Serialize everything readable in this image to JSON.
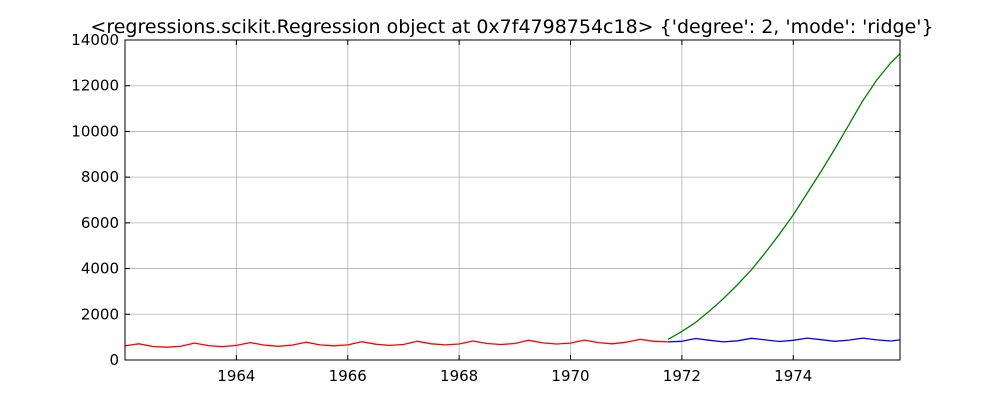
{
  "chart_data": {
    "type": "line",
    "title": "<regressions.scikit.Regression object at 0x7f4798754c18> {'degree': 2, 'mode': 'ridge'}",
    "xlabel": "",
    "ylabel": "",
    "xlim": [
      "1962-01",
      "1975-12"
    ],
    "ylim": [
      0,
      14000
    ],
    "x_ticks": [
      1964,
      1966,
      1968,
      1970,
      1972,
      1974
    ],
    "y_ticks": [
      0,
      2000,
      4000,
      6000,
      8000,
      10000,
      12000,
      14000
    ],
    "grid": true,
    "legend": "none",
    "series": [
      {
        "color": "#ff0000",
        "x": [
          "1962-01",
          "1962-04",
          "1962-07",
          "1962-10",
          "1963-01",
          "1963-04",
          "1963-07",
          "1963-10",
          "1964-01",
          "1964-04",
          "1964-07",
          "1964-10",
          "1965-01",
          "1965-04",
          "1965-07",
          "1965-10",
          "1966-01",
          "1966-04",
          "1966-07",
          "1966-10",
          "1967-01",
          "1967-04",
          "1967-07",
          "1967-10",
          "1968-01",
          "1968-04",
          "1968-07",
          "1968-10",
          "1969-01",
          "1969-04",
          "1969-07",
          "1969-10",
          "1970-01",
          "1970-04",
          "1970-07",
          "1970-10",
          "1971-01",
          "1971-04",
          "1971-07",
          "1971-10"
        ],
        "values": [
          620,
          710,
          590,
          560,
          600,
          740,
          630,
          580,
          640,
          760,
          650,
          600,
          650,
          780,
          660,
          620,
          660,
          800,
          690,
          640,
          680,
          820,
          710,
          660,
          700,
          830,
          720,
          680,
          720,
          860,
          750,
          700,
          740,
          870,
          760,
          710,
          780,
          900,
          820,
          790
        ]
      },
      {
        "color": "#0000ff",
        "x": [
          "1971-10",
          "1972-01",
          "1972-04",
          "1972-07",
          "1972-10",
          "1973-01",
          "1973-04",
          "1973-07",
          "1973-10",
          "1974-01",
          "1974-04",
          "1974-07",
          "1974-10",
          "1975-01",
          "1975-04",
          "1975-07",
          "1975-10",
          "1975-12"
        ],
        "values": [
          790,
          820,
          940,
          860,
          790,
          840,
          950,
          880,
          810,
          860,
          960,
          890,
          820,
          870,
          960,
          880,
          830,
          880
        ]
      },
      {
        "color": "#008000",
        "x": [
          "1971-10",
          "1972-01",
          "1972-04",
          "1972-07",
          "1972-10",
          "1973-01",
          "1973-04",
          "1973-07",
          "1973-10",
          "1974-01",
          "1974-04",
          "1974-07",
          "1974-10",
          "1975-01",
          "1975-04",
          "1975-07",
          "1975-10",
          "1975-12"
        ],
        "values": [
          900,
          1250,
          1650,
          2150,
          2700,
          3300,
          3950,
          4700,
          5500,
          6350,
          7300,
          8250,
          9250,
          10300,
          11350,
          12250,
          13000,
          13400
        ]
      }
    ]
  }
}
